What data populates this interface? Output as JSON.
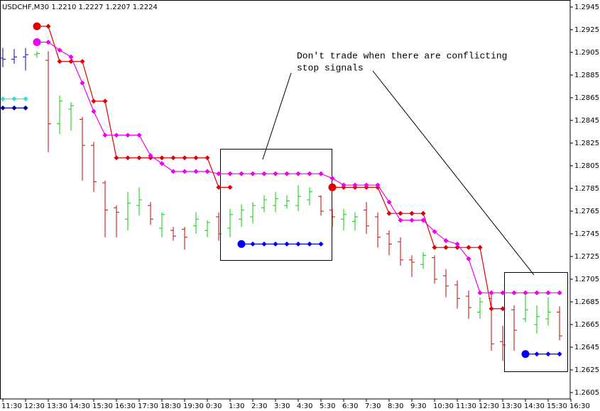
{
  "chart_data": {
    "type": "ohlc",
    "title": "USDCHF,M30  1.2210 1.2227 1.2207 1.2224",
    "annotation": [
      "Don't trade when there are conflicting",
      "stop signals"
    ],
    "categories": [
      "11:30",
      null,
      "12:30",
      null,
      "13:30",
      null,
      "14:30",
      null,
      "15:30",
      null,
      "16:30",
      null,
      "17:30",
      null,
      "18:30",
      null,
      "19:30",
      null,
      "0:30",
      null,
      "1:30",
      null,
      "2:30",
      null,
      "3:30",
      null,
      "4:30",
      null,
      "5:30",
      null,
      "6:30",
      null,
      "7:30",
      null,
      "8:30",
      null,
      "9:30",
      null,
      "10:30",
      null,
      "11:30",
      null,
      "12:30",
      null,
      "13:30",
      null,
      "14:30",
      null,
      "15:30",
      null,
      "16:30"
    ],
    "open": [
      1.29,
      1.2899,
      1.2901,
      1.2903,
      1.2898,
      1.2842,
      1.2855,
      1.2846,
      1.2823,
      1.279,
      1.2768,
      1.2758,
      1.277,
      1.277,
      1.275,
      1.2748,
      1.2749,
      1.2752,
      1.2748,
      1.276,
      1.275,
      1.2758,
      1.276,
      1.2768,
      1.277,
      1.277,
      1.277,
      1.2775,
      1.2778,
      1.2766,
      1.2758,
      1.2756,
      1.2766,
      1.276,
      1.2745,
      1.2738,
      1.2722,
      1.2718,
      1.2724,
      1.2708,
      1.27,
      1.269,
      1.2676,
      1.2688,
      1.265,
      1.2678,
      1.267,
      1.2665,
      1.267,
      1.2676,
      null
    ],
    "high": [
      1.2909,
      1.2908,
      1.2909,
      1.2906,
      1.2906,
      1.2867,
      1.2861,
      1.2848,
      1.2826,
      1.2792,
      1.277,
      1.2782,
      1.2786,
      1.2773,
      1.2764,
      1.2751,
      1.2751,
      1.2764,
      1.2757,
      1.2764,
      1.2767,
      1.2771,
      1.2773,
      1.2779,
      1.2782,
      1.2779,
      1.2788,
      1.2786,
      1.2779,
      1.2767,
      1.2767,
      1.2764,
      1.2773,
      1.2764,
      1.2748,
      1.2742,
      1.2726,
      1.2729,
      1.2726,
      1.2714,
      1.2704,
      1.2695,
      1.2689,
      1.2692,
      1.2664,
      1.2682,
      1.2692,
      1.2682,
      1.2689,
      1.2681,
      null
    ],
    "low": [
      1.2892,
      1.2895,
      1.2889,
      1.29,
      1.2817,
      1.2833,
      1.2836,
      1.2792,
      1.2782,
      1.2742,
      1.2742,
      1.2748,
      1.2761,
      1.2753,
      1.2742,
      1.2739,
      1.2731,
      1.2745,
      1.2742,
      1.2739,
      1.2742,
      1.2751,
      1.2754,
      1.2764,
      1.2764,
      1.2767,
      1.2765,
      1.277,
      1.2761,
      1.2751,
      1.2748,
      1.2748,
      1.2745,
      1.2733,
      1.2726,
      1.2717,
      1.2707,
      1.2714,
      1.2701,
      1.2689,
      1.2679,
      1.267,
      1.267,
      1.2642,
      1.2633,
      1.2642,
      1.2667,
      1.2657,
      1.2664,
      1.2651,
      null
    ],
    "close": [
      1.2899,
      1.2901,
      1.2903,
      1.2904,
      1.2842,
      1.2862,
      1.2858,
      1.2823,
      1.2791,
      1.2766,
      1.2764,
      1.2772,
      1.2775,
      1.2758,
      1.2762,
      1.2743,
      1.2742,
      1.2758,
      1.2755,
      1.2745,
      1.2762,
      1.2766,
      1.277,
      1.2775,
      1.2776,
      1.2774,
      1.2778,
      1.2782,
      1.2765,
      1.276,
      1.2762,
      1.276,
      1.2752,
      1.2742,
      1.2736,
      1.2722,
      1.272,
      1.2726,
      1.2705,
      1.2699,
      1.2688,
      1.268,
      1.2685,
      1.2648,
      1.2647,
      1.266,
      1.2678,
      1.2672,
      1.2676,
      1.2655,
      null
    ],
    "colors": [
      "#0000c8",
      "#0000c8",
      "#0000c8",
      "#00d000",
      "#d00000",
      "#00d000",
      "#00d000",
      "#d00000",
      "#d00000",
      "#d00000",
      "#d00000",
      "#00d000",
      "#00d000",
      "#d00000",
      "#00d000",
      "#d00000",
      "#d00000",
      "#00d000",
      "#00d000",
      "#d00000",
      "#00d000",
      "#00d000",
      "#00d000",
      "#00d000",
      "#00d000",
      "#00d000",
      "#00d000",
      "#00d000",
      "#d00000",
      "#d00000",
      "#00d000",
      "#00d000",
      "#d00000",
      "#d00000",
      "#d00000",
      "#d00000",
      "#d00000",
      "#00d000",
      "#d00000",
      "#d00000",
      "#d00000",
      "#d00000",
      "#00d000",
      "#d00000",
      "#d00000",
      "#d00000",
      "#00d000",
      "#00d000",
      "#00d000",
      "#d00000",
      null
    ],
    "series": [
      {
        "color": "#e00000",
        "start_marker": true,
        "values": [
          null,
          null,
          null,
          1.2928,
          1.2928,
          1.2897,
          1.2897,
          1.2897,
          1.2862,
          1.2862,
          1.2812,
          1.2812,
          1.2812,
          1.2812,
          1.2812,
          1.2812,
          1.2812,
          1.2812,
          1.2812,
          1.2786,
          1.2786,
          null,
          null,
          null,
          null,
          null,
          null,
          null,
          null,
          1.2786,
          1.2786,
          1.2786,
          1.2786,
          1.2786,
          1.2763,
          1.2763,
          1.2763,
          1.2763,
          1.2733,
          1.2733,
          1.2733,
          1.2733,
          1.2733,
          1.2679,
          1.2679,
          null,
          null,
          null,
          null,
          null,
          null
        ]
      },
      {
        "color": "#f000f0",
        "start_marker": true,
        "values": [
          null,
          null,
          null,
          1.2914,
          1.2914,
          1.2907,
          1.2901,
          1.2878,
          1.2853,
          1.2832,
          1.2832,
          1.2832,
          1.2832,
          1.2814,
          1.2807,
          1.28,
          1.28,
          1.28,
          1.28,
          1.2798,
          1.2798,
          1.2798,
          1.2798,
          1.2798,
          1.2798,
          1.2798,
          1.2798,
          1.2798,
          1.2798,
          1.2794,
          1.2788,
          1.2788,
          1.2788,
          1.2788,
          1.2773,
          1.2757,
          1.2757,
          1.2757,
          1.2747,
          1.2739,
          1.2736,
          1.2723,
          1.2693,
          1.2693,
          1.2693,
          1.2693,
          1.2693,
          1.2693,
          1.2693,
          1.2693,
          null
        ]
      },
      {
        "color": "#30e0e0",
        "start_marker": false,
        "values": [
          1.2864,
          1.2864,
          1.2864,
          null,
          null,
          null,
          null,
          null,
          null,
          null,
          null,
          null,
          null,
          null,
          null,
          null,
          null,
          null,
          null,
          null,
          null,
          null,
          null,
          null,
          null,
          null,
          null,
          null,
          null,
          null,
          null,
          null,
          null,
          null,
          null,
          null,
          null,
          null,
          null,
          null,
          null,
          null,
          null,
          null,
          null,
          null,
          null,
          null,
          null,
          null,
          null
        ]
      },
      {
        "color": "#0000a0",
        "start_marker": false,
        "values": [
          1.2856,
          1.2856,
          1.2856,
          null,
          null,
          null,
          null,
          null,
          null,
          null,
          null,
          null,
          null,
          null,
          null,
          null,
          null,
          null,
          null,
          null,
          null,
          null,
          null,
          null,
          null,
          null,
          null,
          null,
          null,
          null,
          null,
          null,
          null,
          null,
          null,
          null,
          null,
          null,
          null,
          null,
          null,
          null,
          null,
          null,
          null,
          null,
          null,
          null,
          null,
          null,
          null
        ]
      },
      {
        "color": "#0000ff",
        "start_marker": true,
        "values": [
          null,
          null,
          null,
          null,
          null,
          null,
          null,
          null,
          null,
          null,
          null,
          null,
          null,
          null,
          null,
          null,
          null,
          null,
          null,
          null,
          null,
          1.2736,
          1.2736,
          1.2736,
          1.2736,
          1.2736,
          1.2736,
          1.2736,
          1.2736,
          null,
          null,
          null,
          null,
          null,
          null,
          null,
          null,
          null,
          null,
          null,
          null,
          null,
          null,
          null,
          null,
          null,
          1.2639,
          1.2639,
          1.2639,
          1.2639,
          null
        ]
      }
    ],
    "ylim": [
      1.25994,
      1.29512
    ],
    "yticks": [
      1.2945,
      1.2925,
      1.2905,
      1.2885,
      1.2865,
      1.2845,
      1.2825,
      1.2805,
      1.2785,
      1.2765,
      1.2745,
      1.2725,
      1.2705,
      1.2685,
      1.2665,
      1.2645,
      1.2625,
      1.2605
    ]
  }
}
